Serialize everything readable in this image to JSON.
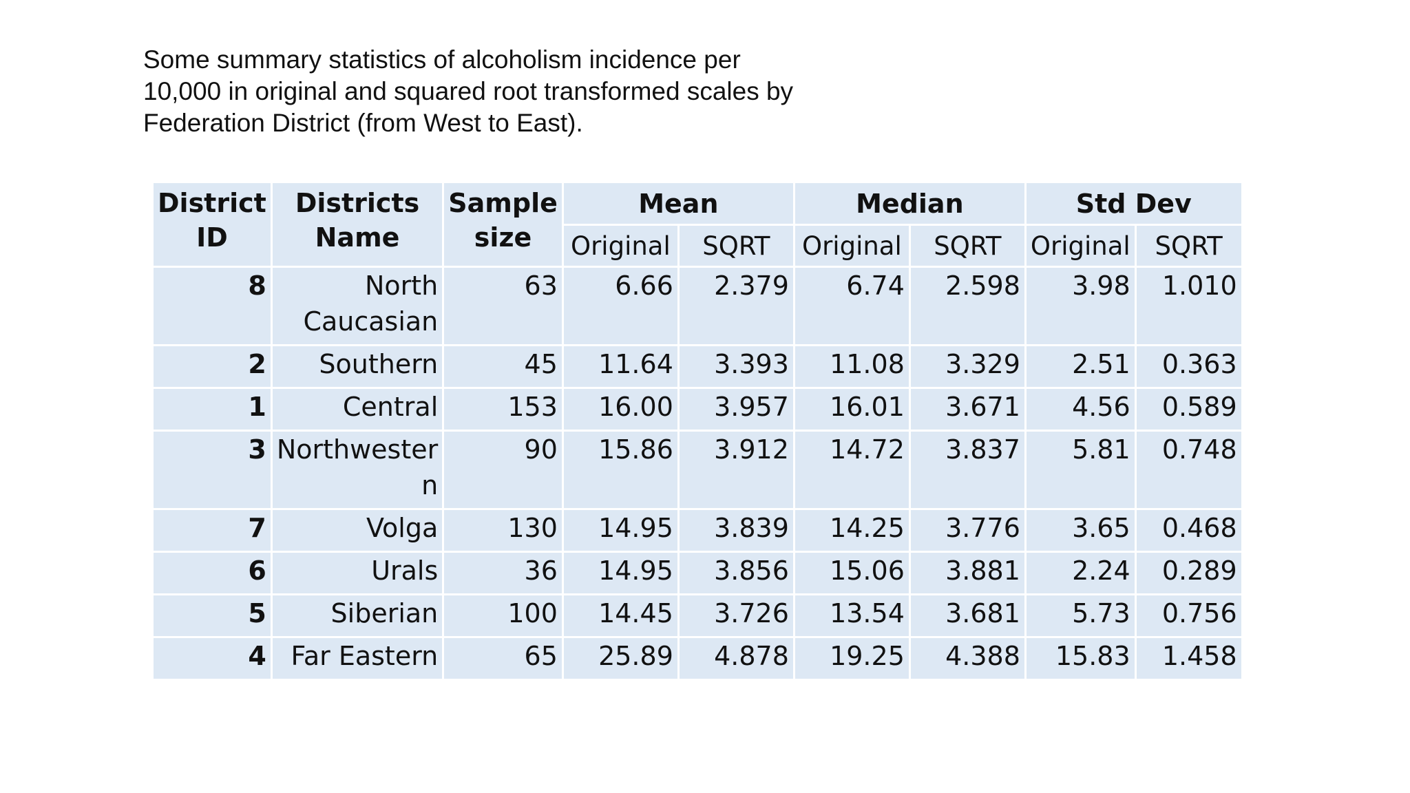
{
  "caption": {
    "line1": "Some summary statistics of alcoholism incidence per",
    "line2": "10,000 in original and squared root transformed scales by",
    "line3": "Federation District (from West to East)."
  },
  "table": {
    "headers": {
      "district_id": [
        "District",
        "ID"
      ],
      "district_name": [
        "Districts",
        "Name"
      ],
      "sample_size": [
        "Sample",
        "size"
      ],
      "mean": "Mean",
      "median": "Median",
      "std_dev": "Std Dev",
      "original": "Original",
      "sqrt": "SQRT"
    },
    "rows": [
      {
        "id": "8",
        "name": [
          "North",
          "Caucasian"
        ],
        "size": "63",
        "mean_orig": "6.66",
        "mean_sqrt": "2.379",
        "median_orig": "6.74",
        "median_sqrt": "2.598",
        "sd_orig": "3.98",
        "sd_sqrt": "1.010"
      },
      {
        "id": "2",
        "name": [
          "Southern"
        ],
        "size": "45",
        "mean_orig": "11.64",
        "mean_sqrt": "3.393",
        "median_orig": "11.08",
        "median_sqrt": "3.329",
        "sd_orig": "2.51",
        "sd_sqrt": "0.363"
      },
      {
        "id": "1",
        "name": [
          "Central"
        ],
        "size": "153",
        "mean_orig": "16.00",
        "mean_sqrt": "3.957",
        "median_orig": "16.01",
        "median_sqrt": "3.671",
        "sd_orig": "4.56",
        "sd_sqrt": "0.589"
      },
      {
        "id": "3",
        "name": [
          "Northwester",
          "n"
        ],
        "size": "90",
        "mean_orig": "15.86",
        "mean_sqrt": "3.912",
        "median_orig": "14.72",
        "median_sqrt": "3.837",
        "sd_orig": "5.81",
        "sd_sqrt": "0.748"
      },
      {
        "id": "7",
        "name": [
          "Volga"
        ],
        "size": "130",
        "mean_orig": "14.95",
        "mean_sqrt": "3.839",
        "median_orig": "14.25",
        "median_sqrt": "3.776",
        "sd_orig": "3.65",
        "sd_sqrt": "0.468"
      },
      {
        "id": "6",
        "name": [
          "Urals"
        ],
        "size": "36",
        "mean_orig": "14.95",
        "mean_sqrt": "3.856",
        "median_orig": "15.06",
        "median_sqrt": "3.881",
        "sd_orig": "2.24",
        "sd_sqrt": "0.289"
      },
      {
        "id": "5",
        "name": [
          "Siberian"
        ],
        "size": "100",
        "mean_orig": "14.45",
        "mean_sqrt": "3.726",
        "median_orig": "13.54",
        "median_sqrt": "3.681",
        "sd_orig": "5.73",
        "sd_sqrt": "0.756"
      },
      {
        "id": "4",
        "name": [
          "Far Eastern"
        ],
        "size": "65",
        "mean_orig": "25.89",
        "mean_sqrt": "4.878",
        "median_orig": "19.25",
        "median_sqrt": "4.388",
        "sd_orig": "15.83",
        "sd_sqrt": "1.458"
      }
    ]
  },
  "colors": {
    "cell_background": "#dde8f4",
    "grid_lines": "#ffffff",
    "text": "#111111"
  }
}
